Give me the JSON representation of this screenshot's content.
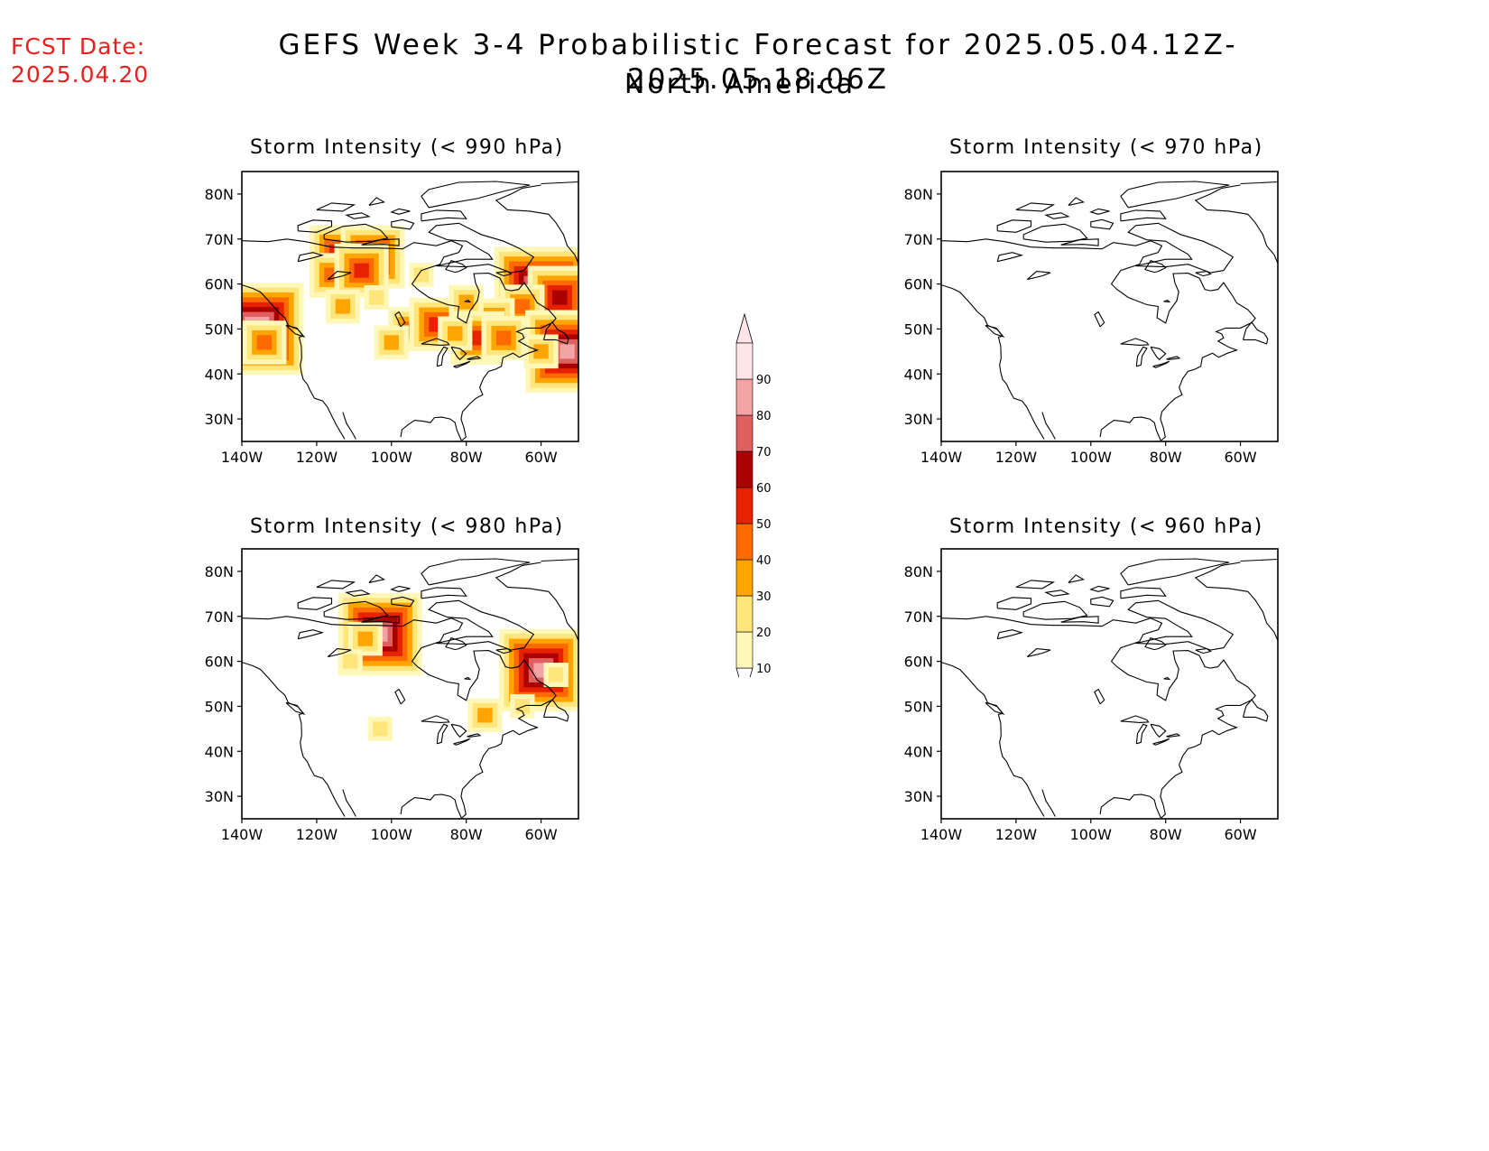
{
  "header": {
    "fcst_label": "FCST Date:",
    "fcst_date": "2025.04.20",
    "title": "GEFS Week 3-4 Probabilistic Forecast for 2025.05.04.12Z-2025.05.18.06Z",
    "subtitle": "North America"
  },
  "axes": {
    "lat_ticks": [
      "80N",
      "70N",
      "60N",
      "50N",
      "40N",
      "30N"
    ],
    "lon_ticks": [
      "140W",
      "120W",
      "100W",
      "80W",
      "60W"
    ],
    "lat_values": [
      80,
      70,
      60,
      50,
      40,
      30
    ],
    "lon_values": [
      -140,
      -120,
      -100,
      -80,
      -60
    ],
    "lat_range": [
      25,
      85
    ],
    "lon_range": [
      -140,
      -50
    ]
  },
  "colorbar": {
    "levels": [
      "10",
      "20",
      "30",
      "40",
      "50",
      "60",
      "70",
      "80",
      "90"
    ],
    "colors": [
      "#fff7b8",
      "#ffe57a",
      "#ffa400",
      "#ff6a00",
      "#e62200",
      "#aa0000",
      "#e06060",
      "#f2a3a3",
      "#ffe4e8"
    ]
  },
  "panels": [
    {
      "id": "p990",
      "title": "Storm Intensity (< 990 hPa)",
      "blobs": [
        {
          "lon": -112,
          "lat": 65,
          "level": 6
        },
        {
          "lon": -105,
          "lat": 66,
          "level": 5
        },
        {
          "lon": -116,
          "lat": 62,
          "level": 3
        },
        {
          "lon": -108,
          "lat": 63,
          "level": 4
        },
        {
          "lon": -113,
          "lat": 55,
          "level": 2
        },
        {
          "lon": -104,
          "lat": 57,
          "level": 1
        },
        {
          "lon": -136,
          "lat": 50,
          "level": 8
        },
        {
          "lon": -134,
          "lat": 47,
          "level": 3
        },
        {
          "lon": -95,
          "lat": 50,
          "level": 3
        },
        {
          "lon": -88,
          "lat": 51,
          "level": 4
        },
        {
          "lon": -100,
          "lat": 47,
          "level": 2
        },
        {
          "lon": -92,
          "lat": 62,
          "level": 1
        },
        {
          "lon": -60,
          "lat": 58,
          "level": 8
        },
        {
          "lon": -55,
          "lat": 57,
          "level": 5
        },
        {
          "lon": -65,
          "lat": 55,
          "level": 3
        },
        {
          "lon": -73,
          "lat": 52,
          "level": 3
        },
        {
          "lon": -80,
          "lat": 56,
          "level": 2
        },
        {
          "lon": -77,
          "lat": 48,
          "level": 4
        },
        {
          "lon": -70,
          "lat": 48,
          "level": 3
        },
        {
          "lon": -53,
          "lat": 45,
          "level": 7
        },
        {
          "lon": -60,
          "lat": 45,
          "level": 2
        },
        {
          "lon": -83,
          "lat": 49,
          "level": 2
        }
      ]
    },
    {
      "id": "p970",
      "title": "Storm Intensity (< 970 hPa)",
      "blobs": []
    },
    {
      "id": "p980",
      "title": "Storm Intensity (< 980 hPa)",
      "blobs": [
        {
          "lon": -103,
          "lat": 66,
          "level": 7
        },
        {
          "lon": -107,
          "lat": 65,
          "level": 2
        },
        {
          "lon": -60,
          "lat": 58,
          "level": 7
        },
        {
          "lon": -56,
          "lat": 57,
          "level": 1
        },
        {
          "lon": -75,
          "lat": 48,
          "level": 2
        },
        {
          "lon": -65,
          "lat": 50,
          "level": 1
        },
        {
          "lon": -103,
          "lat": 45,
          "level": 1
        },
        {
          "lon": -111,
          "lat": 60,
          "level": 1
        }
      ]
    },
    {
      "id": "p960",
      "title": "Storm Intensity (< 960 hPa)",
      "blobs": []
    }
  ]
}
